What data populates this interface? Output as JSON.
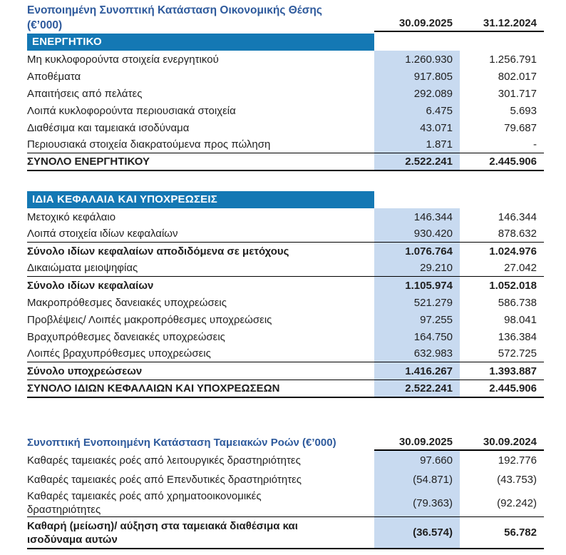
{
  "colors": {
    "title_blue": "#2E5A9C",
    "section_bar_blue": "#1478B4",
    "highlight_blue": "#C8DAF0",
    "text": "#1f1f1f"
  },
  "balance_sheet": {
    "title_line1": "Ενοποιημένη Συνοπτική Κατάσταση Οικονομικής Θέσης",
    "title_line2": "(€’000)",
    "col1_header": "30.09.2025",
    "col2_header": "31.12.2024",
    "assets": {
      "header": "ΕΝΕΡΓΗΤΙΚΟ",
      "rows": [
        {
          "label": "Μη κυκλοφορούντα στοιχεία ενεργητικού",
          "v1": "1.260.930",
          "v2": "1.256.791"
        },
        {
          "label": "Αποθέματα",
          "v1": "917.805",
          "v2": "802.017"
        },
        {
          "label": "Απαιτήσεις από πελάτες",
          "v1": "292.089",
          "v2": "301.717"
        },
        {
          "label": "Λοιπά κυκλοφορούντα περιουσιακά στοιχεία",
          "v1": "6.475",
          "v2": "5.693"
        },
        {
          "label": "Διαθέσιμα και ταμειακά ισοδύναμα",
          "v1": "43.071",
          "v2": "79.687"
        },
        {
          "label": "Περιουσιακά στοιχεία διακρατούμενα προς πώληση",
          "v1": "1.871",
          "v2": "-"
        }
      ],
      "total": {
        "label": "ΣΥΝΟΛΟ ΕΝΕΡΓΗΤΙΚΟΥ",
        "v1": "2.522.241",
        "v2": "2.445.906"
      }
    },
    "equity_liabilities": {
      "header": "ΙΔΙΑ ΚΕΦΑΛΑΙΑ ΚΑΙ ΥΠΟΧΡΕΩΣΕΙΣ",
      "rows": [
        {
          "label": "Μετοχικό κεφάλαιο",
          "v1": "146.344",
          "v2": "146.344"
        },
        {
          "label": "Λοιπά στοιχεία ιδίων κεφαλαίων",
          "v1": "930.420",
          "v2": "878.632"
        },
        {
          "label": "Σύνολο ιδίων κεφαλαίων αποδιδόμενα σε μετόχους",
          "v1": "1.076.764",
          "v2": "1.024.976"
        },
        {
          "label": "Δικαιώματα μειοψηφίας",
          "v1": "29.210",
          "v2": "27.042"
        },
        {
          "label": "Σύνολο ιδίων κεφαλαίων",
          "v1": "1.105.974",
          "v2": "1.052.018"
        },
        {
          "label": "Μακροπρόθεσμες δανειακές υποχρεώσεις",
          "v1": "521.279",
          "v2": "586.738"
        },
        {
          "label": "Προβλέψεις/ Λοιπές μακροπρόθεσμες υποχρεώσεις",
          "v1": "97.255",
          "v2": "98.041"
        },
        {
          "label": "Βραχυπρόθεσμες δανειακές υποχρεώσεις",
          "v1": "164.750",
          "v2": "136.384"
        },
        {
          "label": "Λοιπές βραχυπρόθεσμες υποχρεώσεις",
          "v1": "632.983",
          "v2": "572.725"
        },
        {
          "label": "Σύνολο υποχρεώσεων",
          "v1": "1.416.267",
          "v2": "1.393.887"
        },
        {
          "label": "ΣΥΝΟΛΟ ΙΔΙΩΝ ΚΕΦΑΛΑΙΩΝ ΚΑΙ ΥΠΟΧΡΕΩΣΕΩΝ",
          "v1": "2.522.241",
          "v2": "2.445.906"
        }
      ]
    }
  },
  "cash_flow": {
    "title": "Συνοπτική Ενοποιημένη Κατάσταση Ταμειακών Ροών (€’000)",
    "col1_header": "30.09.2025",
    "col2_header": "30.09.2024",
    "rows": [
      {
        "label": "Καθαρές ταμειακές ροές από λειτουργικές δραστηριότητες",
        "v1": "97.660",
        "v2": "192.776"
      },
      {
        "label": "Καθαρές ταμειακές ροές από Επενδυτικές δραστηριότητες",
        "v1": "(54.871)",
        "v2": "(43.753)"
      },
      {
        "label": "Καθαρές ταμειακές ροές από χρηματοοικονομικές δραστηριότητες",
        "v1": "(79.363)",
        "v2": "(92.242)"
      },
      {
        "label": "Καθαρή (μείωση)/ αύξηση στα ταμειακά διαθέσιμα και ισοδύναμα αυτών",
        "v1": "(36.574)",
        "v2": "56.782"
      }
    ]
  }
}
